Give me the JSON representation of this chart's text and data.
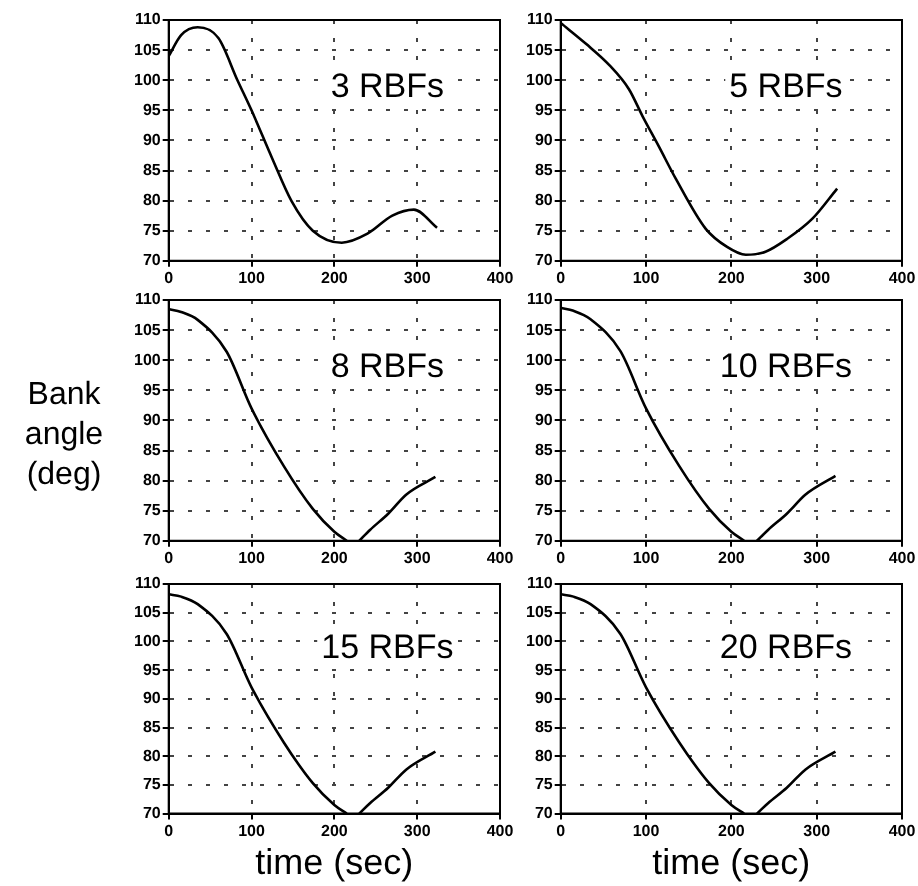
{
  "chart_data": [
    {
      "type": "line",
      "x": [
        0,
        15,
        35,
        60,
        83,
        100,
        125,
        148,
        174,
        209,
        240,
        270,
        296,
        324
      ],
      "values": [
        104,
        107.5,
        108.8,
        107,
        100,
        95,
        87,
        80,
        75,
        73,
        74.5,
        77.5,
        78.5,
        75.5
      ],
      "color": "#000000",
      "xlim": [
        0,
        400
      ],
      "xticks": [
        0,
        100,
        200,
        300,
        400
      ],
      "ylim": [
        70,
        110
      ],
      "yticks": [
        70,
        75,
        80,
        85,
        90,
        95,
        100,
        105,
        110
      ],
      "grid": true,
      "marker": "none",
      "line_style": "solid",
      "annotations": [
        "3 RBFs"
      ]
    },
    {
      "type": "line",
      "x": [
        0,
        30,
        57,
        80,
        96,
        115,
        135,
        170,
        195,
        217,
        240,
        265,
        295,
        324
      ],
      "values": [
        109.5,
        106,
        102.5,
        98.5,
        94,
        89,
        83.6,
        75.3,
        72.3,
        71,
        71.5,
        73.6,
        77,
        82
      ],
      "color": "#000000",
      "xlim": [
        0,
        400
      ],
      "xticks": [
        0,
        100,
        200,
        300,
        400
      ],
      "ylim": [
        70,
        110
      ],
      "yticks": [
        70,
        75,
        80,
        85,
        90,
        95,
        100,
        105,
        110
      ],
      "grid": true,
      "marker": "none",
      "line_style": "solid",
      "annotations": [
        "5 RBFs"
      ]
    },
    {
      "type": "line",
      "x": [
        0,
        15,
        35,
        70,
        100,
        139,
        174,
        200,
        215,
        222,
        230,
        243,
        265,
        287,
        322
      ],
      "values": [
        108.5,
        108,
        106.7,
        101.4,
        92,
        82.4,
        75.3,
        71.5,
        70,
        null,
        70,
        71.8,
        74.5,
        77.7,
        80.6
      ],
      "color": "#000000",
      "xlim": [
        0,
        400
      ],
      "xticks": [
        0,
        100,
        200,
        300,
        400
      ],
      "ylim": [
        70,
        110
      ],
      "yticks": [
        70,
        75,
        80,
        85,
        90,
        95,
        100,
        105,
        110
      ],
      "grid": true,
      "marker": "none",
      "line_style": "solid",
      "ylabel": "Bank angle (deg)",
      "annotations": [
        "8 RBFs"
      ]
    },
    {
      "type": "line",
      "x": [
        0,
        15,
        35,
        70,
        100,
        139,
        174,
        200,
        215,
        222,
        230,
        243,
        265,
        287,
        322
      ],
      "values": [
        108.7,
        108.2,
        106.8,
        101.5,
        92,
        82.4,
        75.3,
        71.5,
        70,
        null,
        70,
        71.8,
        74.5,
        77.7,
        80.8
      ],
      "color": "#000000",
      "xlim": [
        0,
        400
      ],
      "xticks": [
        0,
        100,
        200,
        300,
        400
      ],
      "ylim": [
        70,
        110
      ],
      "yticks": [
        70,
        75,
        80,
        85,
        90,
        95,
        100,
        105,
        110
      ],
      "grid": true,
      "marker": "none",
      "line_style": "solid",
      "annotations": [
        "10 RBFs"
      ]
    },
    {
      "type": "line",
      "x": [
        0,
        15,
        35,
        70,
        100,
        139,
        174,
        200,
        215,
        222,
        230,
        243,
        265,
        287,
        322
      ],
      "values": [
        108.2,
        107.8,
        106.5,
        101.3,
        92,
        82.4,
        75.3,
        71.5,
        70,
        null,
        70,
        71.8,
        74.5,
        77.7,
        80.8
      ],
      "color": "#000000",
      "xlim": [
        0,
        400
      ],
      "xticks": [
        0,
        100,
        200,
        300,
        400
      ],
      "ylim": [
        70,
        110
      ],
      "yticks": [
        70,
        75,
        80,
        85,
        90,
        95,
        100,
        105,
        110
      ],
      "grid": true,
      "marker": "none",
      "line_style": "solid",
      "xlabel": "time (sec)",
      "annotations": [
        "15 RBFs"
      ]
    },
    {
      "type": "line",
      "x": [
        0,
        15,
        35,
        70,
        100,
        139,
        174,
        200,
        215,
        222,
        230,
        243,
        265,
        287,
        322
      ],
      "values": [
        108.2,
        107.8,
        106.5,
        101.3,
        92,
        82.4,
        75.3,
        71.5,
        70,
        null,
        70,
        71.8,
        74.5,
        77.7,
        80.8
      ],
      "color": "#000000",
      "xlim": [
        0,
        400
      ],
      "xticks": [
        0,
        100,
        200,
        300,
        400
      ],
      "ylim": [
        70,
        110
      ],
      "yticks": [
        70,
        75,
        80,
        85,
        90,
        95,
        100,
        105,
        110
      ],
      "grid": true,
      "marker": "none",
      "line_style": "solid",
      "xlabel": "time (sec)",
      "annotations": [
        "20 RBFs"
      ]
    }
  ]
}
